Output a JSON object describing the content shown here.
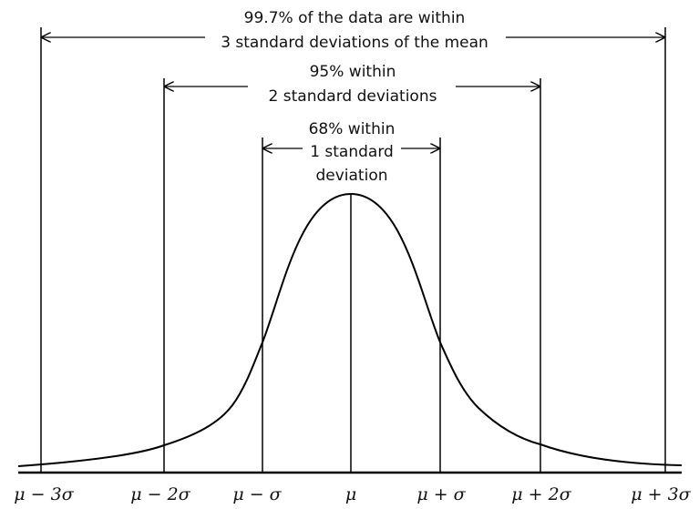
{
  "diagram": {
    "annotations": {
      "three_sd": {
        "line1": "99.7% of the data are within",
        "line2": "3 standard deviations of the mean"
      },
      "two_sd": {
        "line1": "95% within",
        "line2": "2 standard deviations"
      },
      "one_sd": {
        "line1": "68% within",
        "line2": "1 standard",
        "line3": "deviation"
      }
    },
    "axis_labels": {
      "minus3": "μ − 3σ",
      "minus2": "μ − 2σ",
      "minus1": "μ − σ",
      "mean": "μ",
      "plus1": "μ + σ",
      "plus2": "μ + 2σ",
      "plus3": "μ + 3σ"
    },
    "colors": {
      "stroke": "#000000",
      "background": "#ffffff"
    }
  }
}
